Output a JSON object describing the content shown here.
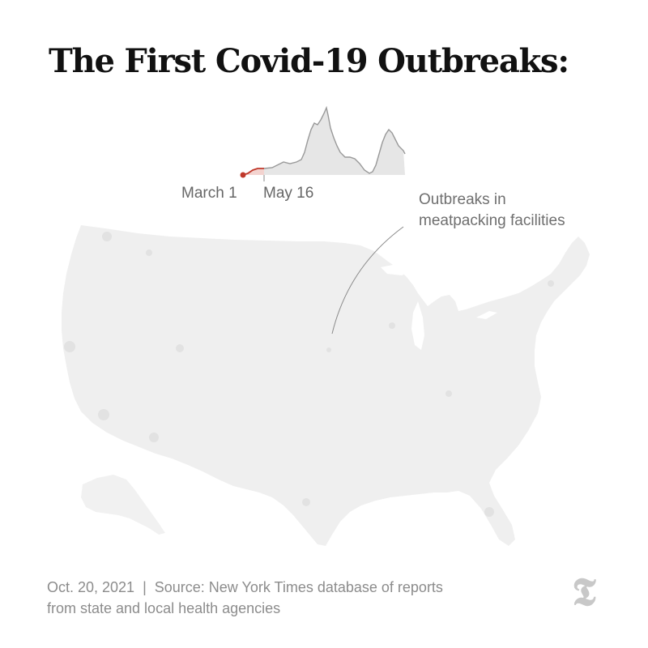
{
  "title": "The First Covid-19 Outbreaks:",
  "timeline": {
    "start_label": "March 1",
    "current_label": "May 16",
    "line_color": "#999999",
    "fill_color": "#e6e6e6",
    "highlight_color": "#c0392b",
    "highlight_fill": "#f3d3cf"
  },
  "annotation": {
    "line1": "Outbreaks in",
    "line2": "meatpacking facilities"
  },
  "map": {
    "fill_color": "#efefef",
    "highlight_color": "#e2e2e2"
  },
  "footer": {
    "line1": "Oct. 20, 2021  |  Source: New York Times database of reports",
    "line2": "from state and local health agencies"
  },
  "logo": {
    "icon": "nyt-logo-icon",
    "color": "#c8c8c8"
  }
}
